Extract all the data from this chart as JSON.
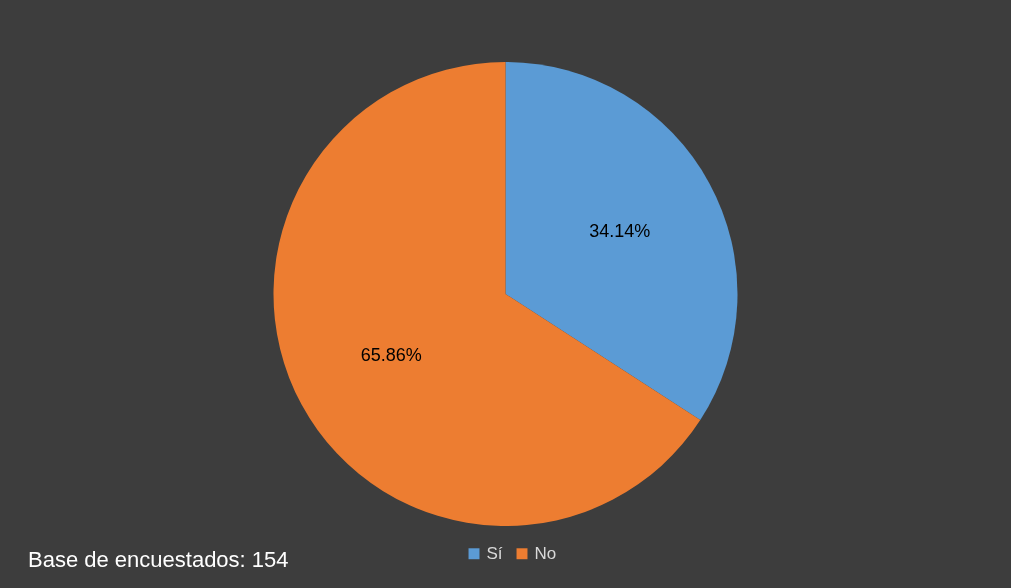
{
  "chart_data": {
    "type": "pie",
    "categories": [
      "Sí",
      "No"
    ],
    "values": [
      34.14,
      65.86
    ],
    "colors": [
      "#5b9bd5",
      "#ed7d31"
    ],
    "value_labels": [
      "34.14%",
      "65.86%"
    ],
    "legend": "bottom",
    "annotations": [
      "Base de encuestados: 154"
    ]
  }
}
